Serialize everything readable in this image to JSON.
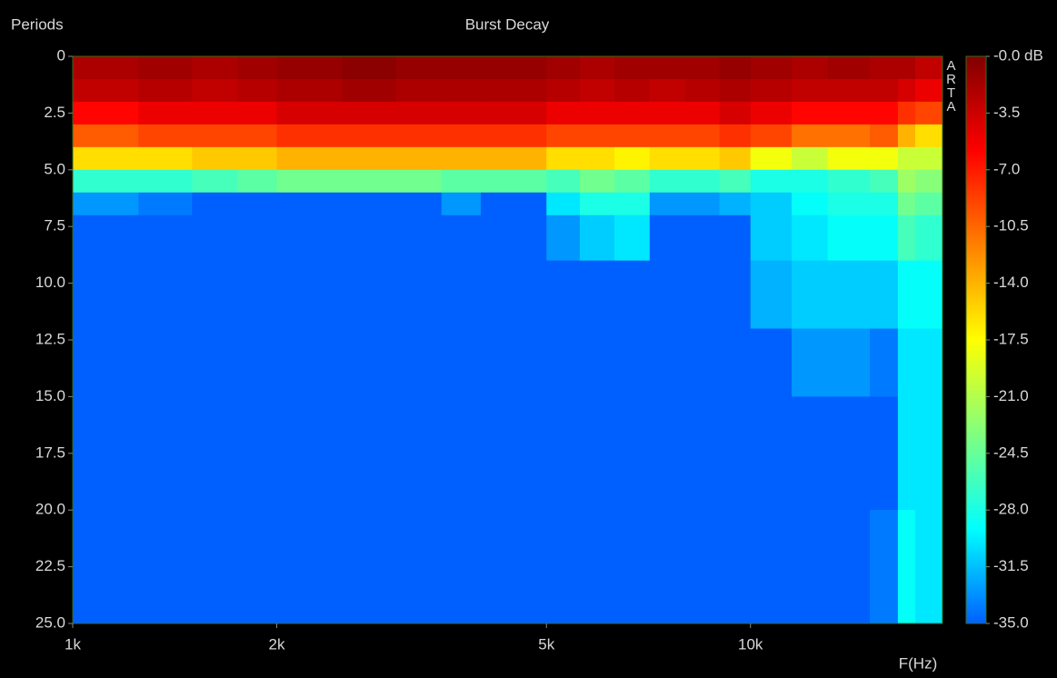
{
  "chart_data": {
    "type": "heatmap",
    "title": "Burst Decay",
    "y_label": "Periods",
    "x_label": "F(Hz)",
    "watermark": "ARTA",
    "log_x": true,
    "xlim": [
      1000,
      19200
    ],
    "xticks": [
      {
        "value": 1000,
        "label": "1k"
      },
      {
        "value": 2000,
        "label": "2k"
      },
      {
        "value": 5000,
        "label": "5k"
      },
      {
        "value": 10000,
        "label": "10k"
      }
    ],
    "ylim": [
      25,
      0
    ],
    "yticks": [
      0,
      2.5,
      {
        "value": 5,
        "label": "5.0"
      },
      7.5,
      {
        "value": 10,
        "label": "10.0"
      },
      12.5,
      {
        "value": 15,
        "label": "15.0"
      },
      17.5,
      {
        "value": 20,
        "label": "20.0"
      },
      22.5,
      {
        "value": 25,
        "label": "25.0"
      }
    ],
    "zlim": [
      -35,
      0
    ],
    "zticks": [
      {
        "value": 0,
        "label": "-0.0 dB"
      },
      -3.5,
      {
        "value": -7,
        "label": "-7.0"
      },
      -10.5,
      {
        "value": -14,
        "label": "-14.0"
      },
      -17.5,
      {
        "value": -21,
        "label": "-21.0"
      },
      -24.5,
      {
        "value": -28,
        "label": "-28.0"
      },
      -31.5,
      {
        "value": -35,
        "label": "-35.0"
      }
    ],
    "colors": [
      "#0060ff",
      "#00ffff",
      "#80ff80",
      "#ffff00",
      "#ff8000",
      "#ff0000",
      "#800000"
    ],
    "x_edges": [
      1000,
      1250,
      1500,
      1750,
      2000,
      2500,
      3000,
      3500,
      4000,
      5000,
      5600,
      6300,
      7100,
      8000,
      9000,
      10000,
      11500,
      13000,
      15000,
      16500,
      17500,
      19200
    ],
    "y_edges": [
      0,
      1,
      2,
      3,
      4,
      5,
      6,
      7,
      9,
      12,
      15,
      20,
      25
    ],
    "values": [
      [
        -2,
        -3,
        -6,
        -10,
        -16,
        -27,
        -33,
        -35,
        -35,
        -35,
        -35,
        -35
      ],
      [
        -1.5,
        -2.5,
        -5,
        -9,
        -16,
        -27,
        -34,
        -35,
        -35,
        -35,
        -35,
        -35
      ],
      [
        -2,
        -3,
        -5,
        -9,
        -15,
        -26,
        -35,
        -35,
        -35,
        -35,
        -35,
        -35
      ],
      [
        -1.5,
        -2.5,
        -5,
        -9,
        -15,
        -25,
        -35,
        -35,
        -35,
        -35,
        -35,
        -35
      ],
      [
        -1,
        -2,
        -4,
        -8,
        -14,
        -24,
        -35,
        -35,
        -35,
        -35,
        -35,
        -35
      ],
      [
        -0.5,
        -1.5,
        -4,
        -8,
        -14,
        -24,
        -35,
        -35,
        -35,
        -35,
        -35,
        -35
      ],
      [
        -1,
        -2,
        -4,
        -8,
        -14,
        -24,
        -35,
        -35,
        -35,
        -35,
        -35,
        -35
      ],
      [
        -1,
        -2,
        -4,
        -8,
        -14,
        -25,
        -33,
        -35,
        -35,
        -35,
        -35,
        -35
      ],
      [
        -1,
        -2,
        -4,
        -8,
        -14,
        -25,
        -35,
        -35,
        -35,
        -35,
        -35,
        -35
      ],
      [
        -1.5,
        -2.5,
        -5,
        -9,
        -16,
        -26,
        -30,
        -33,
        -35,
        -35,
        -35,
        -35
      ],
      [
        -2,
        -3,
        -5,
        -9,
        -16,
        -24,
        -28,
        -31,
        -35,
        -35,
        -35,
        -35
      ],
      [
        -1.5,
        -2.5,
        -5,
        -9,
        -17,
        -25,
        -28,
        -30,
        -35,
        -35,
        -35,
        -35
      ],
      [
        -1.5,
        -3,
        -5,
        -9,
        -16,
        -27,
        -33,
        -35,
        -35,
        -35,
        -35,
        -35
      ],
      [
        -1.5,
        -2.5,
        -5,
        -9,
        -16,
        -27,
        -33,
        -35,
        -35,
        -35,
        -35,
        -35
      ],
      [
        -1,
        -2,
        -4,
        -8,
        -15,
        -26,
        -32,
        -35,
        -35,
        -35,
        -35,
        -35
      ],
      [
        -1.5,
        -2.5,
        -5,
        -9,
        -18,
        -28,
        -31,
        -31,
        -32,
        -35,
        -35,
        -35
      ],
      [
        -2,
        -3,
        -6,
        -11,
        -20,
        -28,
        -29,
        -30,
        -31,
        -33,
        -35,
        -35
      ],
      [
        -1.5,
        -3,
        -6,
        -11,
        -18,
        -27,
        -28,
        -29,
        -31,
        -33,
        -35,
        -35
      ],
      [
        -2,
        -3,
        -6,
        -10,
        -18,
        -26,
        -28,
        -29,
        -31,
        -34,
        -35,
        -34
      ],
      [
        -2,
        -4,
        -8,
        -14,
        -20,
        -22,
        -24,
        -26,
        -29,
        -30,
        -30,
        -29
      ],
      [
        -3,
        -5,
        -9,
        -16,
        -20,
        -23,
        -25,
        -27,
        -29,
        -30,
        -30,
        -30
      ]
    ]
  }
}
